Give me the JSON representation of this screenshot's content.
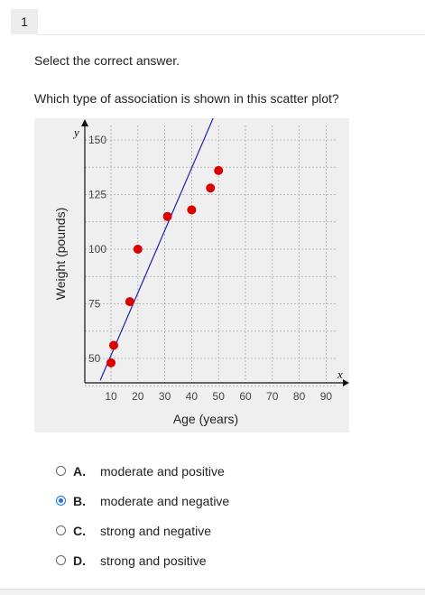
{
  "question_number": "1",
  "instruction": "Select the correct answer.",
  "question": "Which type of association is shown in this scatter plot?",
  "options": [
    {
      "letter": "A.",
      "text": "moderate and positive",
      "selected": false
    },
    {
      "letter": "B.",
      "text": "moderate and negative",
      "selected": true
    },
    {
      "letter": "C.",
      "text": "strong and negative",
      "selected": false
    },
    {
      "letter": "D.",
      "text": "strong and positive",
      "selected": false
    }
  ],
  "chart_data": {
    "type": "scatter",
    "title": "",
    "xlabel": "Age (years)",
    "ylabel": "Weight (pounds)",
    "x_axis_letter": "x",
    "y_axis_letter": "y",
    "xlim": [
      0,
      100
    ],
    "ylim": [
      40,
      160
    ],
    "x_ticks": [
      10,
      20,
      30,
      40,
      50,
      60,
      70,
      80,
      90
    ],
    "y_ticks": [
      50,
      75,
      100,
      125,
      150
    ],
    "grid": true,
    "point_color": "#dd0000",
    "line_color": "#1a22a8",
    "points": [
      {
        "x": 10,
        "y": 48
      },
      {
        "x": 11,
        "y": 56
      },
      {
        "x": 17,
        "y": 76
      },
      {
        "x": 20,
        "y": 100
      },
      {
        "x": 31,
        "y": 115
      },
      {
        "x": 40,
        "y": 118
      },
      {
        "x": 47,
        "y": 128
      },
      {
        "x": 50,
        "y": 136
      }
    ],
    "trend_line": [
      {
        "x": 6,
        "y": 40
      },
      {
        "x": 48,
        "y": 160
      }
    ]
  }
}
